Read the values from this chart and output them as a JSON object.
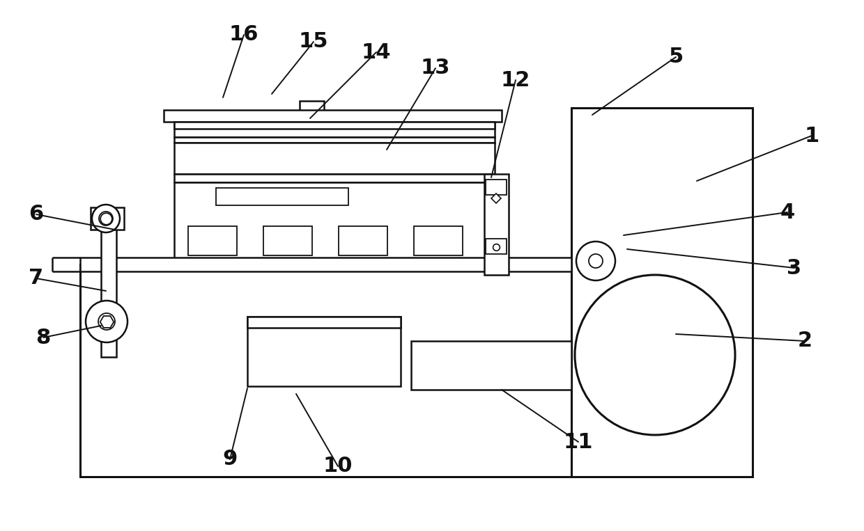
{
  "bg_color": "#ffffff",
  "line_color": "#111111",
  "lw": 1.8,
  "lw_thick": 2.2,
  "lw_thin": 1.3,
  "fig_width": 12.4,
  "fig_height": 7.63,
  "labels_data": [
    [
      "1",
      1165,
      195,
      1000,
      260
    ],
    [
      "2",
      1155,
      490,
      970,
      480
    ],
    [
      "3",
      1140,
      385,
      900,
      358
    ],
    [
      "4",
      1130,
      305,
      895,
      338
    ],
    [
      "5",
      970,
      82,
      850,
      165
    ],
    [
      "6",
      52,
      308,
      165,
      330
    ],
    [
      "7",
      52,
      400,
      152,
      418
    ],
    [
      "8",
      62,
      485,
      145,
      468
    ],
    [
      "9",
      330,
      660,
      355,
      558
    ],
    [
      "10",
      485,
      670,
      425,
      566
    ],
    [
      "11",
      830,
      635,
      720,
      560
    ],
    [
      "12",
      740,
      115,
      705,
      255
    ],
    [
      "13",
      625,
      98,
      555,
      215
    ],
    [
      "14",
      540,
      75,
      445,
      170
    ],
    [
      "15",
      450,
      60,
      390,
      135
    ],
    [
      "16",
      350,
      50,
      320,
      140
    ]
  ]
}
